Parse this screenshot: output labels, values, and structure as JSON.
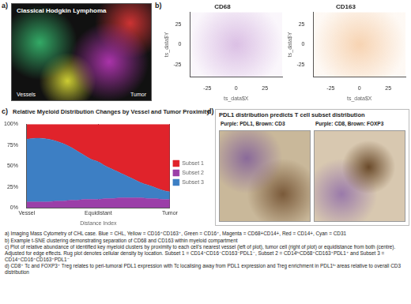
{
  "panel_labels": [
    "a)",
    "b)",
    "c)",
    "d)"
  ],
  "panel_a": {
    "title": "Classical Hodgkin Lymphoma",
    "left_label": "Vessels",
    "right_label": "Tumor"
  },
  "panel_d": {
    "title": "PDL1 distribution predicts T cell subset distribution",
    "images": [
      "Purple: PDL1, Brown: CD3",
      "Purple: CD8, Brown: FOXP3"
    ]
  },
  "chart_data": [
    {
      "type": "scatter",
      "title": "CD68",
      "color": "#9b4fb5",
      "x_label": "ts_data$X",
      "y_label": "ts_data$Y",
      "xlim": [
        -40,
        40
      ],
      "xticks": [
        -25,
        0,
        25
      ],
      "ylim": [
        -40,
        40
      ],
      "yticks": [
        -25,
        0,
        25
      ],
      "grid": false
    },
    {
      "type": "scatter",
      "title": "CD163",
      "color": "#e8862a",
      "x_label": "ts_data$X",
      "y_label": "ts_data$Y",
      "xlim": [
        -40,
        40
      ],
      "xticks": [
        -25,
        0,
        25
      ],
      "ylim": [
        -40,
        40
      ],
      "yticks": [
        -25,
        0,
        25
      ],
      "grid": false
    },
    {
      "type": "area",
      "title": "Relative Myeloid Distribution Changes by Vessel and Tumor Proximity",
      "x_label": "Distance Index",
      "stacked": true,
      "legend": "right",
      "grid": false,
      "categories": [
        "Vessel",
        null,
        null,
        null,
        null,
        null,
        null,
        null,
        null,
        null,
        "Equidistant",
        null,
        null,
        null,
        null,
        null,
        null,
        null,
        null,
        null,
        "Tumor"
      ],
      "ylim": [
        0,
        100
      ],
      "yticks": [
        {
          "value": 0,
          "label": "0%"
        },
        {
          "value": 25,
          "label": "25%"
        },
        {
          "value": 50,
          "label": "50%"
        },
        {
          "value": 75,
          "label": "75%"
        },
        {
          "value": 100,
          "label": "100%"
        }
      ],
      "series": [
        {
          "name": "Subset 2",
          "color": "#9b3fa8",
          "values": [
            7,
            7,
            7,
            7,
            8,
            8,
            9,
            9,
            10,
            10,
            10,
            11,
            11,
            12,
            12,
            12,
            12,
            11,
            11,
            10,
            10
          ]
        },
        {
          "name": "Subset 3",
          "color": "#3d7fc4",
          "values": [
            75,
            76,
            76,
            75,
            72,
            69,
            64,
            59,
            53,
            48,
            45,
            39,
            35,
            30,
            26,
            22,
            18,
            16,
            13,
            11,
            9
          ]
        },
        {
          "name": "Subset 1",
          "color": "#e0232b",
          "values": [
            18,
            17,
            17,
            18,
            20,
            23,
            27,
            32,
            37,
            42,
            45,
            50,
            54,
            58,
            62,
            66,
            70,
            73,
            76,
            79,
            81
          ]
        }
      ]
    }
  ],
  "caption": [
    "a)  Imaging Mass Cytometry of CHL case. Blue = CHL, Yellow = CD16⁺CD163⁺, Green = CD16⁺, Magenta = CD68+CD14+, Red = CD14+, Cyan = CD31",
    "b)  Example t-SNE clustering demonstrating separation of CD68 and CD163 within myeloid compartment",
    "c)  Plot of relative abundance of identified key myeloid clusters by proximity to each cell's nearest vessel (left of plot), tumor cell (right of plot) or equidistance from both (centre). Adjusted for edge effects. Rug plot denotes cellular density by location. Subset 1 = CD14⁺CD16⁻CD163⁻PDL1⁻, Subset 2 = CD14ʰⁱCD68⁺CD163⁺PDL1⁺ and Subset 3 = CD14⁺CD16⁺CD163⁺PDL1⁻",
    "d)  CD8⁺ Tc and FOXP3⁺ Treg relates to peri-tumoral PDL1 expression with Tc localising away from PDL1 expression and Treg enrichment in PDL1ʰⁱ areas relative to overall CD3 distribution"
  ]
}
